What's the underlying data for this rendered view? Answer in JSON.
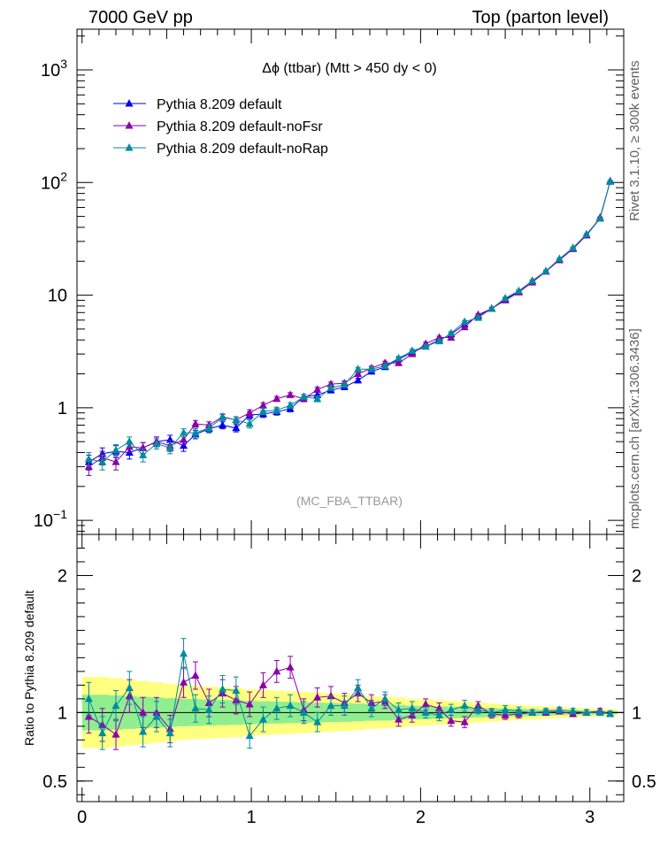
{
  "header": {
    "left": "7000 GeV pp",
    "right": "Top (parton level)"
  },
  "side_labels": {
    "rivet": "Rivet 3.1.10, ≥ 300k events",
    "source": "mcplots.cern.ch [arXiv:1306.3436]"
  },
  "chart_data": {
    "type": "line",
    "title": "Δϕ (ttbar) (Mtt > 450 dy < 0)",
    "watermark": "(MC_FBA_TTBAR)",
    "main_panel": {
      "yscale": "log",
      "ylim": [
        0.075,
        2300
      ],
      "yticks": [
        {
          "v": 1000,
          "b": "10",
          "e": "3"
        },
        {
          "v": 100,
          "b": "10",
          "e": "2"
        },
        {
          "v": 10,
          "b": "10",
          "e": ""
        },
        {
          "v": 1,
          "b": "1",
          "e": ""
        },
        {
          "v": 0.1,
          "b": "10",
          "e": "−1"
        }
      ]
    },
    "ratio_panel": {
      "ylabel": "Ratio to Pythia 8.209 default",
      "ylim": [
        0.35,
        2.3
      ],
      "yticks": [
        {
          "v": 0.5,
          "t": "0.5"
        },
        {
          "v": 1,
          "t": "1"
        },
        {
          "v": 2,
          "t": "2"
        }
      ]
    },
    "xlim": [
      -0.03,
      3.2
    ],
    "xticks": [
      {
        "v": 0,
        "t": "0"
      },
      {
        "v": 1,
        "t": "1"
      },
      {
        "v": 2,
        "t": "2"
      },
      {
        "v": 3,
        "t": "3"
      }
    ],
    "legend_position": "top-left",
    "x": [
      0.04,
      0.12,
      0.2,
      0.28,
      0.36,
      0.44,
      0.52,
      0.6,
      0.67,
      0.75,
      0.83,
      0.91,
      0.99,
      1.07,
      1.15,
      1.23,
      1.31,
      1.39,
      1.47,
      1.55,
      1.63,
      1.71,
      1.79,
      1.87,
      1.95,
      2.03,
      2.11,
      2.18,
      2.26,
      2.34,
      2.42,
      2.5,
      2.58,
      2.66,
      2.74,
      2.82,
      2.9,
      2.98,
      3.06,
      3.12
    ],
    "series": [
      {
        "name": "Pythia 8.209 default",
        "color": "#0000ee",
        "marker": "triangle",
        "values": [
          0.33,
          0.39,
          0.41,
          0.4,
          0.44,
          0.5,
          0.52,
          0.46,
          0.58,
          0.65,
          0.7,
          0.66,
          0.86,
          0.88,
          0.92,
          0.98,
          1.25,
          1.3,
          1.43,
          1.53,
          1.75,
          2.1,
          2.3,
          2.7,
          3.1,
          3.5,
          4.0,
          4.5,
          5.5,
          6.5,
          7.6,
          9.2,
          10.8,
          13.4,
          16.3,
          20.5,
          26.0,
          34.0,
          48.0,
          103
        ],
        "errors": [
          0.05,
          0.05,
          0.05,
          0.05,
          0.05,
          0.05,
          0.05,
          0.05,
          0.05,
          0.05,
          0.05,
          0.05,
          0.06,
          0.06,
          0.06,
          0.06,
          0.07,
          0.07,
          0.07,
          0.08,
          0.08,
          0.09,
          0.09,
          0.1,
          0.11,
          0.12,
          0.12,
          0.13,
          0.15,
          0.16,
          0.18,
          0.2,
          0.22,
          0.25,
          0.28,
          0.33,
          0.38,
          0.45,
          0.55,
          0.8
        ],
        "ratio": [
          1.0,
          1.0,
          1.0,
          1.0,
          1.0,
          1.0,
          1.0,
          1.0,
          1.0,
          1.0,
          1.0,
          1.0,
          1.0,
          1.0,
          1.0,
          1.0,
          1.0,
          1.0,
          1.0,
          1.0,
          1.0,
          1.0,
          1.0,
          1.0,
          1.0,
          1.0,
          1.0,
          1.0,
          1.0,
          1.0,
          1.0,
          1.0,
          1.0,
          1.0,
          1.0,
          1.0,
          1.0,
          1.0,
          1.0,
          1.0
        ]
      },
      {
        "name": "Pythia 8.209 default-noFsr",
        "color": "#8b00a8",
        "marker": "triangle",
        "values": [
          0.3,
          0.36,
          0.33,
          0.45,
          0.44,
          0.5,
          0.46,
          0.52,
          0.72,
          0.7,
          0.83,
          0.78,
          0.9,
          1.05,
          1.2,
          1.3,
          1.2,
          1.45,
          1.62,
          1.65,
          2.0,
          2.25,
          2.5,
          2.5,
          3.0,
          3.7,
          4.2,
          4.2,
          5.2,
          6.7,
          7.6,
          9.0,
          10.6,
          13.0,
          16.2,
          20.5,
          25.7,
          34.0,
          48.9,
          102
        ],
        "errors": [
          0.05,
          0.05,
          0.05,
          0.05,
          0.05,
          0.05,
          0.05,
          0.05,
          0.05,
          0.05,
          0.05,
          0.05,
          0.06,
          0.06,
          0.06,
          0.06,
          0.07,
          0.07,
          0.07,
          0.08,
          0.08,
          0.09,
          0.09,
          0.1,
          0.11,
          0.12,
          0.12,
          0.13,
          0.15,
          0.16,
          0.18,
          0.2,
          0.22,
          0.25,
          0.28,
          0.33,
          0.38,
          0.45,
          0.55,
          0.8
        ],
        "ratio": [
          0.97,
          0.91,
          0.84,
          1.12,
          1.0,
          1.0,
          0.88,
          1.22,
          1.27,
          1.07,
          1.14,
          1.09,
          1.06,
          1.2,
          1.3,
          1.33,
          1.02,
          1.11,
          1.12,
          1.07,
          1.14,
          1.07,
          1.08,
          0.95,
          0.98,
          1.06,
          1.03,
          0.94,
          0.93,
          1.05,
          0.99,
          0.98,
          0.99,
          1.0,
          1.0,
          1.01,
          0.99,
          1.0,
          1.01,
          0.99
        ],
        "ratio_errors": [
          0.12,
          0.12,
          0.11,
          0.12,
          0.11,
          0.11,
          0.1,
          0.11,
          0.1,
          0.1,
          0.1,
          0.1,
          0.09,
          0.09,
          0.08,
          0.08,
          0.08,
          0.07,
          0.07,
          0.07,
          0.06,
          0.06,
          0.05,
          0.05,
          0.05,
          0.04,
          0.04,
          0.04,
          0.04,
          0.03,
          0.03,
          0.03,
          0.03,
          0.02,
          0.02,
          0.02,
          0.02,
          0.02,
          0.02,
          0.02
        ]
      },
      {
        "name": "Pythia 8.209 default-noRap",
        "color": "#008c9e",
        "marker": "triangle",
        "values": [
          0.35,
          0.33,
          0.42,
          0.5,
          0.38,
          0.48,
          0.44,
          0.6,
          0.6,
          0.66,
          0.82,
          0.78,
          0.72,
          0.93,
          0.95,
          1.05,
          1.25,
          1.2,
          1.5,
          1.6,
          2.2,
          2.2,
          2.35,
          2.75,
          3.2,
          3.5,
          3.9,
          4.6,
          5.8,
          6.3,
          7.6,
          9.4,
          10.9,
          13.4,
          16.4,
          21.0,
          26.3,
          34.8,
          48.0,
          102
        ],
        "errors": [
          0.05,
          0.05,
          0.05,
          0.05,
          0.05,
          0.05,
          0.05,
          0.05,
          0.05,
          0.05,
          0.05,
          0.05,
          0.06,
          0.06,
          0.06,
          0.06,
          0.07,
          0.07,
          0.07,
          0.08,
          0.08,
          0.09,
          0.09,
          0.1,
          0.11,
          0.12,
          0.12,
          0.13,
          0.15,
          0.16,
          0.18,
          0.2,
          0.22,
          0.25,
          0.28,
          0.33,
          0.38,
          0.45,
          0.55,
          0.8
        ],
        "ratio": [
          1.1,
          0.85,
          1.05,
          1.18,
          0.86,
          0.97,
          0.85,
          1.43,
          1.03,
          1.02,
          1.17,
          1.16,
          0.83,
          0.95,
          1.03,
          1.05,
          1.0,
          0.93,
          1.05,
          1.05,
          1.18,
          1.03,
          1.1,
          1.02,
          1.03,
          1.0,
          0.98,
          1.02,
          1.05,
          1.02,
          1.0,
          1.02,
          1.01,
          1.0,
          1.01,
          1.02,
          1.01,
          1.0,
          1.0,
          0.99
        ],
        "ratio_errors": [
          0.12,
          0.12,
          0.11,
          0.12,
          0.11,
          0.11,
          0.1,
          0.11,
          0.1,
          0.1,
          0.1,
          0.1,
          0.09,
          0.09,
          0.08,
          0.08,
          0.08,
          0.07,
          0.07,
          0.07,
          0.06,
          0.06,
          0.05,
          0.05,
          0.05,
          0.04,
          0.04,
          0.04,
          0.04,
          0.03,
          0.03,
          0.03,
          0.03,
          0.02,
          0.02,
          0.02,
          0.02,
          0.02,
          0.02,
          0.02
        ]
      }
    ],
    "ratio_bands": {
      "inner_color": "#90ee90",
      "outer_color": "#ffff80",
      "inner_halfwidth": [
        0.13,
        0.13,
        0.125,
        0.12,
        0.115,
        0.11,
        0.105,
        0.1,
        0.098,
        0.095,
        0.092,
        0.09,
        0.085,
        0.082,
        0.08,
        0.078,
        0.075,
        0.072,
        0.07,
        0.068,
        0.065,
        0.06,
        0.058,
        0.055,
        0.05,
        0.048,
        0.045,
        0.042,
        0.04,
        0.036,
        0.033,
        0.03,
        0.027,
        0.025,
        0.022,
        0.02,
        0.018,
        0.016,
        0.014,
        0.012
      ],
      "outer_halfwidth": [
        0.26,
        0.26,
        0.25,
        0.24,
        0.23,
        0.22,
        0.21,
        0.2,
        0.195,
        0.19,
        0.185,
        0.18,
        0.17,
        0.165,
        0.16,
        0.155,
        0.15,
        0.145,
        0.14,
        0.135,
        0.13,
        0.12,
        0.115,
        0.11,
        0.1,
        0.095,
        0.09,
        0.085,
        0.08,
        0.072,
        0.066,
        0.06,
        0.054,
        0.05,
        0.044,
        0.04,
        0.036,
        0.032,
        0.028,
        0.024
      ]
    }
  }
}
